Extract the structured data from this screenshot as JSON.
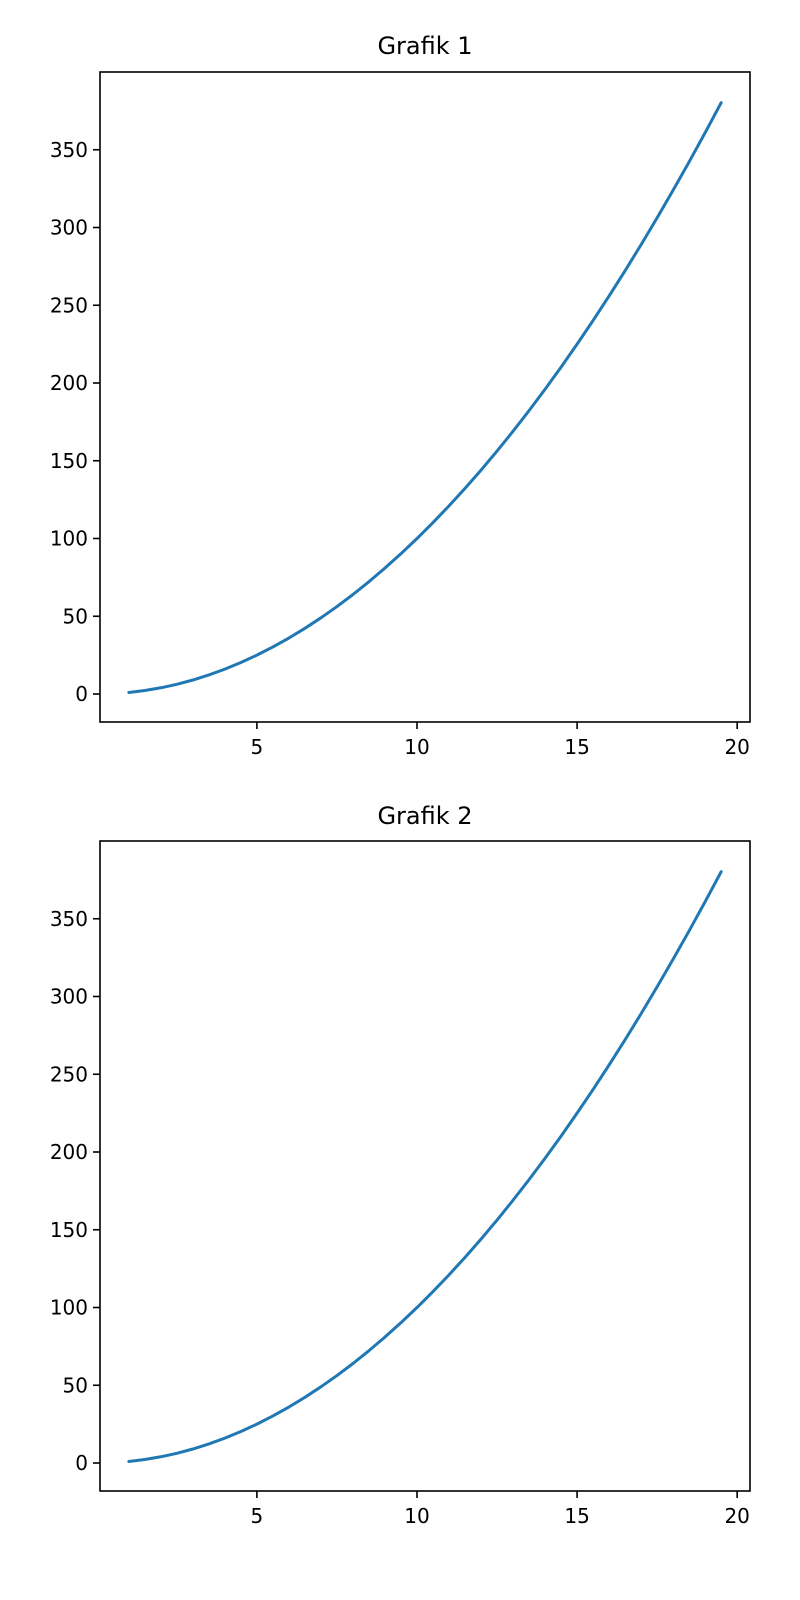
{
  "chart_data": [
    {
      "type": "line",
      "title": "Grafik 1",
      "xlabel": "",
      "ylabel": "",
      "xlim": [
        0.1,
        20.4
      ],
      "ylim": [
        -18,
        400
      ],
      "xticks": [
        5,
        10,
        15,
        20
      ],
      "xtick_labels": [
        "5",
        "10",
        "15",
        "20"
      ],
      "yticks": [
        0,
        50,
        100,
        150,
        200,
        250,
        300,
        350
      ],
      "ytick_labels": [
        "0",
        "50",
        "100",
        "150",
        "200",
        "250",
        "300",
        "350"
      ],
      "grid": false,
      "series": [
        {
          "color": "#1f77b4",
          "x": [
            1,
            1.5,
            2,
            2.5,
            3,
            3.5,
            4,
            4.5,
            5,
            5.5,
            6,
            6.5,
            7,
            7.5,
            8,
            8.5,
            9,
            9.5,
            10,
            10.5,
            11,
            11.5,
            12,
            12.5,
            13,
            13.5,
            14,
            14.5,
            15,
            15.5,
            16,
            16.5,
            17,
            17.5,
            18,
            18.5,
            19,
            19.5
          ],
          "y": [
            1,
            2.25,
            4,
            6.25,
            9,
            12.25,
            16,
            20.25,
            25,
            30.25,
            36,
            42.25,
            49,
            56.25,
            64,
            72.25,
            81,
            90.25,
            100,
            110.25,
            121,
            132.25,
            144,
            156.25,
            169,
            182.25,
            196,
            210.25,
            225,
            240.25,
            256,
            272.25,
            289,
            306.25,
            324,
            342.25,
            361,
            380.25
          ]
        }
      ]
    },
    {
      "type": "line",
      "title": "Grafik 2",
      "xlabel": "",
      "ylabel": "",
      "xlim": [
        0.1,
        20.4
      ],
      "ylim": [
        -18,
        400
      ],
      "xticks": [
        5,
        10,
        15,
        20
      ],
      "xtick_labels": [
        "5",
        "10",
        "15",
        "20"
      ],
      "yticks": [
        0,
        50,
        100,
        150,
        200,
        250,
        300,
        350
      ],
      "ytick_labels": [
        "0",
        "50",
        "100",
        "150",
        "200",
        "250",
        "300",
        "350"
      ],
      "grid": false,
      "series": [
        {
          "color": "#1f77b4",
          "x": [
            1,
            1.5,
            2,
            2.5,
            3,
            3.5,
            4,
            4.5,
            5,
            5.5,
            6,
            6.5,
            7,
            7.5,
            8,
            8.5,
            9,
            9.5,
            10,
            10.5,
            11,
            11.5,
            12,
            12.5,
            13,
            13.5,
            14,
            14.5,
            15,
            15.5,
            16,
            16.5,
            17,
            17.5,
            18,
            18.5,
            19,
            19.5
          ],
          "y": [
            1,
            2.25,
            4,
            6.25,
            9,
            12.25,
            16,
            20.25,
            25,
            30.25,
            36,
            42.25,
            49,
            56.25,
            64,
            72.25,
            81,
            90.25,
            100,
            110.25,
            121,
            132.25,
            144,
            156.25,
            169,
            182.25,
            196,
            210.25,
            225,
            240.25,
            256,
            272.25,
            289,
            306.25,
            324,
            342.25,
            361,
            380.25
          ]
        }
      ]
    }
  ]
}
